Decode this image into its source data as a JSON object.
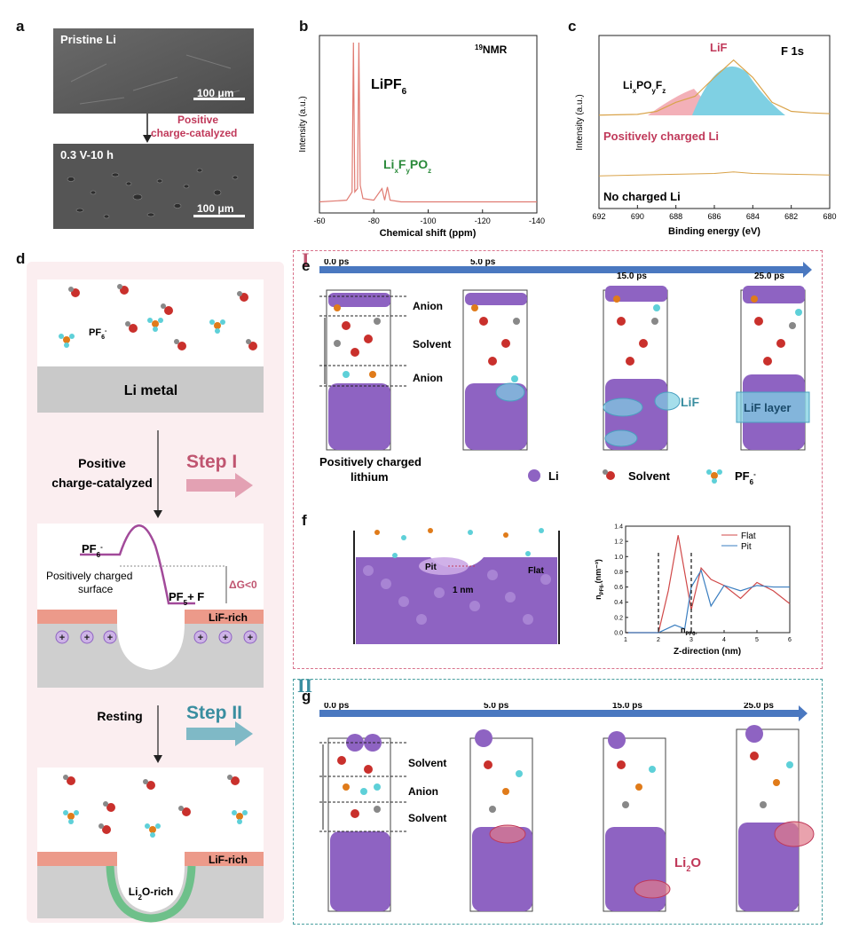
{
  "panels": {
    "a": {
      "label": "a",
      "top_title": "Pristine Li",
      "bottom_title": "0.3 V-10 h",
      "scale": "100 μm",
      "arrow_label_1": "Positive",
      "arrow_label_2": "charge-catalyzed"
    },
    "b": {
      "label": "b",
      "title": "NMR",
      "title_sup": "19",
      "peak1": "LiPF",
      "peak1_sub": "6",
      "peak2_parts": [
        "Li",
        "x",
        "F",
        "y",
        "PO",
        "z"
      ],
      "ylabel": "Intensity (a.u.)",
      "xlabel": "Chemical shift  (ppm)",
      "xticks": [
        "-60",
        "-80",
        "-100",
        "-120",
        "-140"
      ]
    },
    "c": {
      "label": "c",
      "title": "F 1s",
      "peak_lif": "LiF",
      "peak_lipo_parts": [
        "Li",
        "x",
        "PO",
        "y",
        "F",
        "z"
      ],
      "trace1": "Positively charged Li",
      "trace2": "No charged Li",
      "ylabel": "Intensity (a.u.)",
      "xlabel": "Binding energy (eV)",
      "xticks": [
        "692",
        "690",
        "688",
        "686",
        "684",
        "682",
        "680"
      ]
    },
    "d": {
      "label": "d",
      "pf6": "PF",
      "pf6_sub": "6",
      "li_metal": "Li metal",
      "step_text_1": "Positive",
      "step_text_2": "charge-catalyzed",
      "step1": "Step I",
      "energy_pf6": "PF",
      "energy_pf6_sub": "6",
      "surface_1": "Positively charged",
      "surface_2": "surface",
      "products": "PF",
      "products_sub": "5",
      "products_tail": "+ F",
      "dg": "ΔG<0",
      "lif_rich": "LiF-rich",
      "resting": "Resting",
      "step2": "Step II",
      "lif_rich_2": "LiF-rich",
      "li2o_rich": "Li",
      "li2o_rich_sub": "2",
      "li2o_rich_tail": "O-rich"
    },
    "e": {
      "label": "e",
      "roman": "I",
      "times": [
        "0.0 ps",
        "5.0 ps",
        "15.0 ps",
        "25.0 ps"
      ],
      "layers": [
        "Anion",
        "Solvent",
        "Anion"
      ],
      "lif": "LiF",
      "lif_layer": "LiF layer",
      "caption_1": "Positively charged",
      "caption_2": "lithium",
      "legend_li": "Li",
      "legend_solvent": "Solvent",
      "legend_pf6": "PF",
      "legend_pf6_sub": "6"
    },
    "f": {
      "label": "f",
      "pit": "Pit",
      "flat": "Flat",
      "scale": "1 nm",
      "n_marker": "n",
      "n_marker_sub": "PF6-",
      "xlabel": "Z-direction (nm)",
      "ylabel": "n",
      "ylabel_sub": "PF6-",
      "ylabel_unit": "(nm⁻³)"
    },
    "g": {
      "label": "g",
      "roman": "II",
      "times": [
        "0.0 ps",
        "5.0 ps",
        "15.0 ps",
        "25.0 ps"
      ],
      "layers": [
        "Solvent",
        "Anion",
        "Solvent"
      ],
      "li2o": "Li",
      "li2o_sub": "2",
      "li2o_tail": "O"
    }
  },
  "colors": {
    "accent_red": "#c0395a",
    "accent_teal": "#3a8ea0",
    "lithium": "#8e63c2",
    "lif_cyan": "#7fd0e3",
    "nmr_line": "#e07b72",
    "green": "#2a8a3a"
  },
  "chart_data": [
    {
      "type": "line",
      "title": "NMR",
      "xlabel": "Chemical shift  (ppm)",
      "ylabel": "Intensity (a.u.)",
      "xlim": [
        -60,
        -140
      ],
      "x_ticks": [
        -60,
        -80,
        -100,
        -120,
        -140
      ],
      "series": [
        {
          "x": [
            -60,
            -70,
            -72,
            -72.5,
            -73,
            -74,
            -74.5,
            -75,
            -76,
            -80,
            -83,
            -84,
            -85,
            -86,
            -90,
            -100,
            -110,
            -120,
            -130,
            -140
          ],
          "y": [
            0.04,
            0.05,
            0.1,
            1.0,
            0.1,
            0.12,
            1.0,
            0.14,
            0.06,
            0.05,
            0.12,
            0.05,
            0.13,
            0.05,
            0.04,
            0.04,
            0.04,
            0.04,
            0.04,
            0.04
          ]
        }
      ]
    },
    {
      "type": "line",
      "title": "F 1s",
      "xlabel": "Binding energy (eV)",
      "ylabel": "Intensity (a.u.)",
      "xlim": [
        692,
        680
      ],
      "x_ticks": [
        692,
        690,
        688,
        686,
        684,
        682,
        680
      ],
      "series": [
        {
          "name": "Positively charged Li",
          "x": [
            692,
            690,
            689,
            688,
            687,
            686,
            685,
            684,
            683,
            682,
            681,
            680
          ],
          "y": [
            0.05,
            0.06,
            0.1,
            0.22,
            0.3,
            0.55,
            0.78,
            0.55,
            0.22,
            0.1,
            0.08,
            0.07
          ]
        },
        {
          "name": "No charged Li",
          "x": [
            692,
            690,
            688,
            686,
            685,
            684,
            682,
            680
          ],
          "y": [
            0.02,
            0.03,
            0.04,
            0.05,
            0.07,
            0.05,
            0.04,
            0.03
          ]
        }
      ]
    },
    {
      "type": "line",
      "xlabel": "Z-direction (nm)",
      "ylabel": "n PF6- (nm-3)",
      "xlim": [
        1,
        6
      ],
      "ylim": [
        0,
        1.4
      ],
      "x_ticks": [
        1,
        2,
        3,
        4,
        5,
        6
      ],
      "y_ticks": [
        0.0,
        0.2,
        0.4,
        0.6,
        0.8,
        1.0,
        1.2,
        1.4
      ],
      "series": [
        {
          "name": "Flat",
          "x": [
            1,
            1.5,
            2.0,
            2.3,
            2.6,
            3.0,
            3.3,
            3.6,
            4.0,
            4.5,
            5.0,
            5.5,
            6.0
          ],
          "y": [
            0,
            0,
            0,
            0.55,
            1.28,
            0.3,
            0.85,
            0.7,
            0.62,
            0.45,
            0.66,
            0.55,
            0.38
          ]
        },
        {
          "name": "Pit",
          "x": [
            1,
            1.5,
            2.0,
            2.5,
            2.8,
            3.0,
            3.3,
            3.6,
            4.0,
            4.5,
            5.0,
            5.5,
            6.0
          ],
          "y": [
            0,
            0,
            0,
            0.1,
            0.05,
            0.6,
            0.82,
            0.35,
            0.62,
            0.55,
            0.62,
            0.6,
            0.6
          ]
        }
      ]
    }
  ]
}
